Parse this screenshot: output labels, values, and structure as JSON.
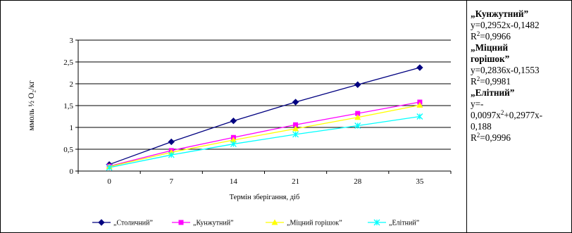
{
  "chart_data": {
    "type": "line",
    "title": "",
    "xlabel": "Термін зберігання, діб",
    "ylabel": "ммоль ½ O₂/кг",
    "x": [
      0,
      7,
      14,
      21,
      28,
      35
    ],
    "xtick_labels": [
      "0",
      "7",
      "14",
      "21",
      "28",
      "35"
    ],
    "ylim": [
      0,
      3
    ],
    "yticks": [
      0,
      0.5,
      1,
      1.5,
      2,
      2.5,
      3
    ],
    "ytick_labels": [
      "0",
      "0,5",
      "1",
      "1,5",
      "2",
      "2,5",
      "3"
    ],
    "grid": "horizontal",
    "legend_position": "bottom",
    "series": [
      {
        "name": "„Столичний”",
        "color": "#000080",
        "marker": "diamond",
        "values": [
          0.15,
          0.67,
          1.15,
          1.58,
          1.98,
          2.37
        ]
      },
      {
        "name": "„Кунжутний”",
        "color": "#ff00ff",
        "marker": "square",
        "values": [
          0.11,
          0.47,
          0.77,
          1.06,
          1.32,
          1.58
        ]
      },
      {
        "name": "„Міцний горішок”",
        "color": "#ffff00",
        "marker": "triangle",
        "values": [
          0.1,
          0.43,
          0.71,
          0.97,
          1.23,
          1.51
        ]
      },
      {
        "name": "„Елітний”",
        "color": "#00ffff",
        "marker": "x",
        "values": [
          0.08,
          0.37,
          0.62,
          0.84,
          1.04,
          1.25
        ]
      }
    ]
  },
  "equations": [
    {
      "name": "„Кунжутний”",
      "line1": "y=0,2952x-0,1482",
      "r2_prefix": "R",
      "r2_exp": "2",
      "r2_value": "=0,9966"
    },
    {
      "name": "„Міцний горішок”",
      "name_line1": "„Міцний",
      "name_line2": "горішок”",
      "line1": "y=0,2836x-0,1553",
      "r2_prefix": "R",
      "r2_exp": "2",
      "r2_value": "=0,9981"
    },
    {
      "name": "„Елітний”",
      "line1": "y=-",
      "line2_a": "0,0097x",
      "line2_exp": "2",
      "line2_b": "+0,2977x-",
      "line3": "0,188",
      "r2_prefix": "R",
      "r2_exp": "2",
      "r2_value": "=0,9996"
    }
  ]
}
